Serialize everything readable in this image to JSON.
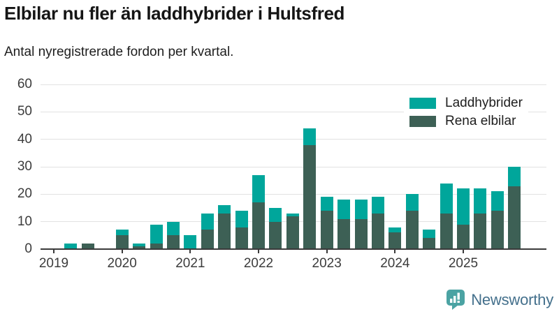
{
  "header": {
    "title": "Elbilar nu fler än laddhybrider i Hultsfred",
    "subtitle": "Antal nyregistrerade fordon per kvartal."
  },
  "legend": [
    {
      "label": "Laddhybrider",
      "color": "#00a69b"
    },
    {
      "label": "Rena elbilar",
      "color": "#3d6055"
    }
  ],
  "chart_data": {
    "type": "bar",
    "stacked": true,
    "title": "Elbilar nu fler än laddhybrider i Hultsfred",
    "subtitle": "Antal nyregistrerade fordon per kvartal.",
    "categories": [
      "2019 Q1",
      "2019 Q2",
      "2019 Q3",
      "2019 Q4",
      "2020 Q1",
      "2020 Q2",
      "2020 Q3",
      "2020 Q4",
      "2021 Q1",
      "2021 Q2",
      "2021 Q3",
      "2021 Q4",
      "2022 Q1",
      "2022 Q2",
      "2022 Q3",
      "2022 Q4",
      "2023 Q1",
      "2023 Q2",
      "2023 Q3",
      "2023 Q4",
      "2024 Q1",
      "2024 Q2",
      "2024 Q3",
      "2024 Q4",
      "2025 Q1",
      "2025 Q2",
      "2025 Q3",
      "2025 Q4"
    ],
    "series": [
      {
        "name": "Rena elbilar",
        "color": "#3d6055",
        "values": [
          0,
          0,
          2,
          0,
          5,
          1,
          2,
          5,
          0,
          7,
          13,
          8,
          17,
          10,
          12,
          38,
          14,
          11,
          11,
          13,
          6,
          14,
          4,
          13,
          9,
          13,
          14,
          23
        ]
      },
      {
        "name": "Laddhybrider",
        "color": "#00a69b",
        "values": [
          0,
          2,
          0,
          0,
          2,
          1,
          7,
          5,
          5,
          6,
          3,
          6,
          10,
          5,
          1,
          6,
          5,
          7,
          7,
          6,
          2,
          6,
          3,
          11,
          13,
          9,
          7,
          7
        ]
      }
    ],
    "totals": [
      0,
      2,
      2,
      0,
      7,
      2,
      9,
      10,
      5,
      13,
      16,
      14,
      27,
      15,
      13,
      44,
      19,
      18,
      18,
      19,
      8,
      20,
      7,
      24,
      22,
      22,
      21,
      30
    ],
    "ylim": [
      0,
      60
    ],
    "yticks": [
      0,
      10,
      20,
      30,
      40,
      50,
      60
    ],
    "year_labels": [
      "2019",
      "2020",
      "2021",
      "2022",
      "2023",
      "2024",
      "2025"
    ],
    "grid": "horizontal",
    "legend_position": "top-right"
  },
  "footer": {
    "brand": "Newsworthy"
  }
}
